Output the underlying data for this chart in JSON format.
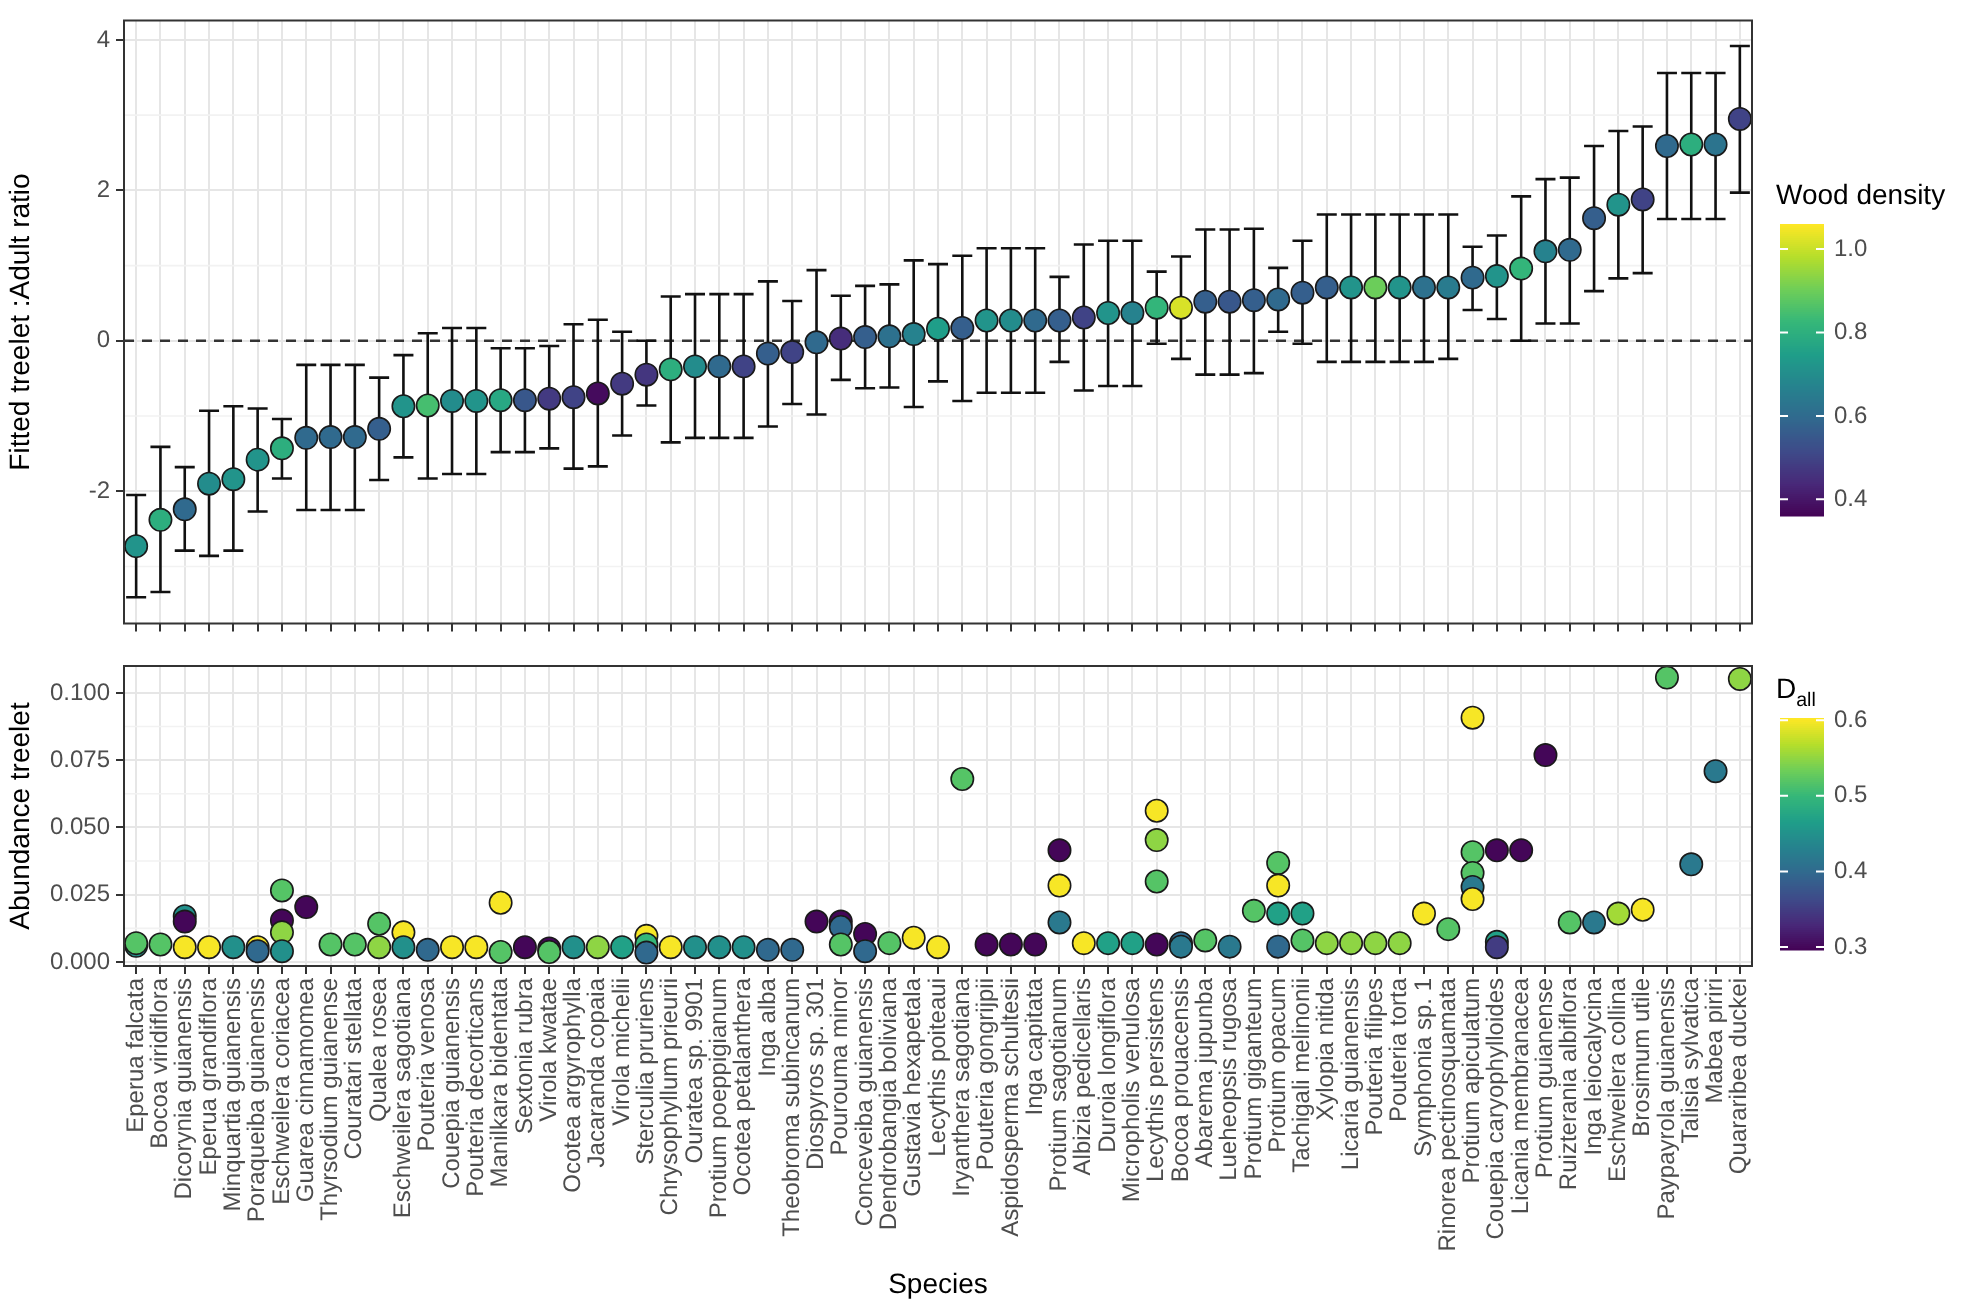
{
  "chart_data": [
    {
      "type": "scatter",
      "ylabel": "Fitted treelet :Adult ratio",
      "clabel": "Wood density",
      "categories": [
        "Eperua falcata",
        "Bocoa viridiflora",
        "Dicorynia guianensis",
        "Eperua grandiflora",
        "Minquartia guianensis",
        "Poraqueiba guianensis",
        "Eschweilera coriacea",
        "Guarea cinnamomea",
        "Thyrsodium guianense",
        "Couratari stellata",
        "Qualea rosea",
        "Eschweilera sagotiana",
        "Pouteria venosa",
        "Couepia guianensis",
        "Pouteria decorticans",
        "Manilkara bidentata",
        "Sextonia rubra",
        "Virola kwatae",
        "Ocotea argyrophylla",
        "Jacaranda copaia",
        "Virola michelii",
        "Sterculia pruriens",
        "Chrysophyllum prieurii",
        "Ouratea sp. 9901",
        "Protium poeppigianum",
        "Ocotea petalanthera",
        "Inga alba",
        "Theobroma subincanum",
        "Diospyros sp. 301",
        "Pourouma minor",
        "Conceveiba guianensis",
        "Dendrobangia boliviana",
        "Gustavia hexapetala",
        "Lecythis poiteaui",
        "Iryanthera sagotiana",
        "Pouteria gongrijpii",
        "Aspidosperma schultesii",
        "Inga capitata",
        "Protium sagotianum",
        "Albizia pedicellaris",
        "Duroia longiflora",
        "Micropholis venulosa",
        "Lecythis persistens",
        "Bocoa prouacensis",
        "Abarema jupunba",
        "Lueheopsis rugosa",
        "Protium giganteum",
        "Protium opacum",
        "Tachigali melinonii",
        "Xylopia nitida",
        "Licaria guianensis",
        "Pouteria filipes",
        "Pouteria torta",
        "Symphonia sp. 1",
        "Rinorea pectinosquamata",
        "Protium apiculatum",
        "Couepia caryophylloides",
        "Licania membranacea",
        "Protium guianense",
        "Ruizterania albiflora",
        "Inga leiocalycina",
        "Eschweilera collina",
        "Brosimum utile",
        "Paypayrola guianensis",
        "Talisia sylvatica",
        "Mabea piriri",
        "Quararibea duckei"
      ],
      "values": [
        -2.73,
        -2.38,
        -2.24,
        -1.9,
        -1.84,
        -1.58,
        -1.43,
        -1.29,
        -1.28,
        -1.28,
        -1.17,
        -0.87,
        -0.86,
        -0.8,
        -0.8,
        -0.79,
        -0.79,
        -0.77,
        -0.75,
        -0.7,
        -0.57,
        -0.45,
        -0.38,
        -0.34,
        -0.34,
        -0.34,
        -0.17,
        -0.15,
        -0.02,
        0.03,
        0.05,
        0.06,
        0.09,
        0.16,
        0.17,
        0.27,
        0.27,
        0.27,
        0.27,
        0.31,
        0.37,
        0.37,
        0.44,
        0.44,
        0.52,
        0.52,
        0.54,
        0.55,
        0.64,
        0.71,
        0.71,
        0.71,
        0.71,
        0.71,
        0.71,
        0.84,
        0.86,
        0.96,
        1.19,
        1.21,
        1.63,
        1.81,
        1.88,
        2.59,
        2.61,
        2.61,
        2.95
      ],
      "errors": [
        [
          -3.41,
          -2.05
        ],
        [
          -3.34,
          -1.41
        ],
        [
          -2.79,
          -1.68
        ],
        [
          -2.86,
          -0.93
        ],
        [
          -2.79,
          -0.87
        ],
        [
          -2.27,
          -0.9
        ],
        [
          -1.83,
          -1.04
        ],
        [
          -2.25,
          -0.32
        ],
        [
          -2.25,
          -0.32
        ],
        [
          -2.25,
          -0.32
        ],
        [
          -1.85,
          -0.49
        ],
        [
          -1.55,
          -0.19
        ],
        [
          -1.83,
          0.1
        ],
        [
          -1.77,
          0.17
        ],
        [
          -1.77,
          0.17
        ],
        [
          -1.48,
          -0.1
        ],
        [
          -1.48,
          -0.1
        ],
        [
          -1.43,
          -0.07
        ],
        [
          -1.7,
          0.22
        ],
        [
          -1.67,
          0.28
        ],
        [
          -1.26,
          0.12
        ],
        [
          -0.86,
          0.0
        ],
        [
          -1.35,
          0.59
        ],
        [
          -1.29,
          0.62
        ],
        [
          -1.29,
          0.62
        ],
        [
          -1.29,
          0.62
        ],
        [
          -1.14,
          0.79
        ],
        [
          -0.84,
          0.53
        ],
        [
          -0.98,
          0.94
        ],
        [
          -0.52,
          0.6
        ],
        [
          -0.63,
          0.73
        ],
        [
          -0.62,
          0.75
        ],
        [
          -0.88,
          1.07
        ],
        [
          -0.54,
          1.02
        ],
        [
          -0.8,
          1.13
        ],
        [
          -0.69,
          1.23
        ],
        [
          -0.69,
          1.23
        ],
        [
          -0.69,
          1.23
        ],
        [
          -0.28,
          0.85
        ],
        [
          -0.66,
          1.28
        ],
        [
          -0.6,
          1.33
        ],
        [
          -0.6,
          1.33
        ],
        [
          -0.04,
          0.92
        ],
        [
          -0.24,
          1.12
        ],
        [
          -0.45,
          1.48
        ],
        [
          -0.45,
          1.48
        ],
        [
          -0.43,
          1.49
        ],
        [
          0.12,
          0.97
        ],
        [
          -0.04,
          1.33
        ],
        [
          -0.28,
          1.68
        ],
        [
          -0.28,
          1.68
        ],
        [
          -0.28,
          1.68
        ],
        [
          -0.28,
          1.68
        ],
        [
          -0.28,
          1.68
        ],
        [
          -0.24,
          1.68
        ],
        [
          0.41,
          1.25
        ],
        [
          0.29,
          1.4
        ],
        [
          0.0,
          1.92
        ],
        [
          0.23,
          2.15
        ],
        [
          0.23,
          2.17
        ],
        [
          0.66,
          2.59
        ],
        [
          0.83,
          2.79
        ],
        [
          0.9,
          2.85
        ],
        [
          1.62,
          3.56
        ],
        [
          1.62,
          3.56
        ],
        [
          1.62,
          3.56
        ],
        [
          1.97,
          3.92
        ]
      ],
      "cvalues": [
        0.72,
        0.8,
        0.6,
        0.7,
        0.72,
        0.72,
        0.8,
        0.6,
        0.6,
        0.6,
        0.57,
        0.72,
        0.85,
        0.7,
        0.72,
        0.78,
        0.55,
        0.48,
        0.5,
        0.38,
        0.48,
        0.47,
        0.8,
        0.7,
        0.6,
        0.5,
        0.57,
        0.5,
        0.6,
        0.45,
        0.57,
        0.62,
        0.67,
        0.75,
        0.57,
        0.72,
        0.7,
        0.6,
        0.57,
        0.5,
        0.72,
        0.67,
        0.82,
        1.02,
        0.57,
        0.55,
        0.57,
        0.6,
        0.57,
        0.57,
        0.72,
        0.9,
        0.72,
        0.62,
        0.65,
        0.6,
        0.72,
        0.82,
        0.67,
        0.6,
        0.57,
        0.72,
        0.5,
        0.6,
        0.8,
        0.63,
        0.5
      ],
      "clim": [
        0.36,
        1.06
      ],
      "cticks": [
        {
          "value": 0.4,
          "label": "0.4"
        },
        {
          "value": 0.6,
          "label": "0.6"
        },
        {
          "value": 0.8,
          "label": "0.8"
        },
        {
          "value": 1.0,
          "label": "1.0"
        }
      ],
      "ylim": [
        -3.76,
        4.26
      ],
      "yticks": [
        -2,
        0,
        2,
        4
      ],
      "ref_lines": [
        {
          "axis": "y",
          "value": 0,
          "line_style": "dashed"
        }
      ],
      "grid": true,
      "tick_labels": "y",
      "marker": "circle"
    },
    {
      "type": "scatter",
      "xlabel": "Species",
      "ylabel": "Abundance treelet",
      "clabel": "D$_{all}$",
      "categories": [
        "Eperua falcata",
        "Bocoa viridiflora",
        "Dicorynia guianensis",
        "Eperua grandiflora",
        "Minquartia guianensis",
        "Poraqueiba guianensis",
        "Eschweilera coriacea",
        "Guarea cinnamomea",
        "Thyrsodium guianense",
        "Couratari stellata",
        "Qualea rosea",
        "Eschweilera sagotiana",
        "Pouteria venosa",
        "Couepia guianensis",
        "Pouteria decorticans",
        "Manilkara bidentata",
        "Sextonia rubra",
        "Virola kwatae",
        "Ocotea argyrophylla",
        "Jacaranda copaia",
        "Virola michelii",
        "Sterculia pruriens",
        "Chrysophyllum prieurii",
        "Ouratea sp. 9901",
        "Protium poeppigianum",
        "Ocotea petalanthera",
        "Inga alba",
        "Theobroma subincanum",
        "Diospyros sp. 301",
        "Pourouma minor",
        "Conceveiba guianensis",
        "Dendrobangia boliviana",
        "Gustavia hexapetala",
        "Lecythis poiteaui",
        "Iryanthera sagotiana",
        "Pouteria gongrijpii",
        "Aspidosperma schultesii",
        "Inga capitata",
        "Protium sagotianum",
        "Albizia pedicellaris",
        "Duroia longiflora",
        "Micropholis venulosa",
        "Lecythis persistens",
        "Bocoa prouacensis",
        "Abarema jupunba",
        "Lueheopsis rugosa",
        "Protium giganteum",
        "Protium opacum",
        "Tachigali melinonii",
        "Xylopia nitida",
        "Licaria guianensis",
        "Pouteria filipes",
        "Pouteria torta",
        "Symphonia sp. 1",
        "Rinorea pectinosquamata",
        "Protium apiculatum",
        "Couepia caryophylloides",
        "Licania membranacea",
        "Protium guianense",
        "Ruizterania albiflora",
        "Inga leiocalycina",
        "Eschweilera collina",
        "Brosimum utile",
        "Paypayrola guianensis",
        "Talisia sylvatica",
        "Mabea piriri",
        "Quararibea duckei"
      ],
      "series": [
        {
          "x": [
            "Eperua falcata",
            "Eperua falcata",
            "Bocoa viridiflora",
            "Dicorynia guianensis",
            "Dicorynia guianensis",
            "Dicorynia guianensis",
            "Eperua grandiflora",
            "Minquartia guianensis",
            "Poraqueiba guianensis",
            "Poraqueiba guianensis",
            "Eschweilera coriacea",
            "Eschweilera coriacea",
            "Eschweilera coriacea",
            "Eschweilera coriacea",
            "Guarea cinnamomea",
            "Thyrsodium guianense",
            "Couratari stellata",
            "Qualea rosea",
            "Qualea rosea",
            "Eschweilera sagotiana",
            "Eschweilera sagotiana",
            "Pouteria venosa",
            "Couepia guianensis",
            "Pouteria decorticans",
            "Manilkara bidentata",
            "Manilkara bidentata",
            "Sextonia rubra",
            "Virola kwatae",
            "Virola kwatae",
            "Ocotea argyrophylla",
            "Jacaranda copaia",
            "Virola michelii",
            "Sterculia pruriens",
            "Sterculia pruriens",
            "Sterculia pruriens",
            "Chrysophyllum prieurii",
            "Ouratea sp. 9901",
            "Protium poeppigianum",
            "Ocotea petalanthera",
            "Inga alba",
            "Theobroma subincanum",
            "Diospyros sp. 301",
            "Pourouma minor",
            "Pourouma minor",
            "Pourouma minor",
            "Conceveiba guianensis",
            "Conceveiba guianensis",
            "Dendrobangia boliviana",
            "Gustavia hexapetala",
            "Lecythis poiteaui",
            "Iryanthera sagotiana",
            "Pouteria gongrijpii",
            "Aspidosperma schultesii",
            "Inga capitata",
            "Protium sagotianum",
            "Protium sagotianum",
            "Protium sagotianum",
            "Albizia pedicellaris",
            "Duroia longiflora",
            "Micropholis venulosa",
            "Lecythis persistens",
            "Lecythis persistens",
            "Lecythis persistens",
            "Lecythis persistens",
            "Bocoa prouacensis",
            "Bocoa prouacensis",
            "Abarema jupunba",
            "Lueheopsis rugosa",
            "Protium giganteum",
            "Protium opacum",
            "Protium opacum",
            "Protium opacum",
            "Protium opacum",
            "Tachigali melinonii",
            "Tachigali melinonii",
            "Xylopia nitida",
            "Licaria guianensis",
            "Pouteria filipes",
            "Pouteria torta",
            "Symphonia sp. 1",
            "Rinorea pectinosquamata",
            "Protium apiculatum",
            "Protium apiculatum",
            "Protium apiculatum",
            "Protium apiculatum",
            "Protium apiculatum",
            "Couepia caryophylloides",
            "Couepia caryophylloides",
            "Couepia caryophylloides",
            "Licania membranacea",
            "Protium guianense",
            "Ruizterania albiflora",
            "Inga leiocalycina",
            "Eschweilera collina",
            "Brosimum utile",
            "Paypayrola guianensis",
            "Talisia sylvatica",
            "Mabea piriri",
            "Quararibea duckei"
          ],
          "values": [
            0.006,
            0.007,
            0.0065,
            0.017,
            0.015,
            0.0055,
            0.0055,
            0.0055,
            0.0055,
            0.004,
            0.0266,
            0.0154,
            0.011,
            0.004,
            0.0204,
            0.0065,
            0.0065,
            0.0142,
            0.0055,
            0.011,
            0.0055,
            0.0045,
            0.0055,
            0.0055,
            0.022,
            0.0037,
            0.0055,
            0.005,
            0.0037,
            0.0055,
            0.0055,
            0.0055,
            0.0097,
            0.0065,
            0.0035,
            0.0055,
            0.0055,
            0.0055,
            0.0055,
            0.0045,
            0.0045,
            0.015,
            0.015,
            0.013,
            0.0065,
            0.0104,
            0.004,
            0.007,
            0.009,
            0.0055,
            0.068,
            0.0065,
            0.0065,
            0.0065,
            0.0415,
            0.0284,
            0.0147,
            0.007,
            0.007,
            0.007,
            0.0562,
            0.0453,
            0.0299,
            0.0065,
            0.007,
            0.0057,
            0.008,
            0.0057,
            0.019,
            0.0368,
            0.0284,
            0.018,
            0.0057,
            0.018,
            0.008,
            0.007,
            0.007,
            0.007,
            0.007,
            0.018,
            0.0122,
            0.0908,
            0.0408,
            0.0331,
            0.0279,
            0.0234,
            0.0415,
            0.0075,
            0.0055,
            0.0415,
            0.0769,
            0.0147,
            0.0147,
            0.018,
            0.0194,
            0.1057,
            0.0363,
            0.0709,
            0.1052
          ],
          "cvalues": [
            0.45,
            0.52,
            0.52,
            0.45,
            0.3,
            0.6,
            0.6,
            0.45,
            0.6,
            0.4,
            0.52,
            0.3,
            0.55,
            0.45,
            0.3,
            0.52,
            0.52,
            0.52,
            0.55,
            0.6,
            0.45,
            0.4,
            0.6,
            0.6,
            0.6,
            0.52,
            0.3,
            0.3,
            0.52,
            0.45,
            0.55,
            0.47,
            0.6,
            0.5,
            0.4,
            0.6,
            0.45,
            0.45,
            0.45,
            0.4,
            0.4,
            0.3,
            0.3,
            0.4,
            0.52,
            0.3,
            0.4,
            0.52,
            0.6,
            0.6,
            0.52,
            0.3,
            0.3,
            0.3,
            0.3,
            0.6,
            0.42,
            0.6,
            0.47,
            0.47,
            0.6,
            0.55,
            0.52,
            0.3,
            0.4,
            0.42,
            0.52,
            0.42,
            0.52,
            0.52,
            0.6,
            0.47,
            0.4,
            0.47,
            0.52,
            0.55,
            0.55,
            0.55,
            0.55,
            0.6,
            0.52,
            0.6,
            0.52,
            0.52,
            0.42,
            0.6,
            0.3,
            0.47,
            0.35,
            0.3,
            0.3,
            0.52,
            0.42,
            0.56,
            0.6,
            0.52,
            0.42,
            0.42,
            0.55
          ]
        }
      ],
      "clim": [
        0.296,
        0.603
      ],
      "cticks": [
        {
          "value": 0.3,
          "label": "0.3"
        },
        {
          "value": 0.4,
          "label": "0.4"
        },
        {
          "value": 0.5,
          "label": "0.5"
        },
        {
          "value": 0.6,
          "label": "0.6"
        }
      ],
      "ylim": [
        -0.0015,
        0.11
      ],
      "yticks": [
        {
          "value": 0,
          "label": "0.000"
        },
        {
          "value": 0.025,
          "label": "0.025"
        },
        {
          "value": 0.05,
          "label": "0.050"
        },
        {
          "value": 0.075,
          "label": "0.075"
        },
        {
          "value": 0.1,
          "label": "0.100"
        }
      ],
      "grid": true,
      "marker": "circle"
    }
  ]
}
